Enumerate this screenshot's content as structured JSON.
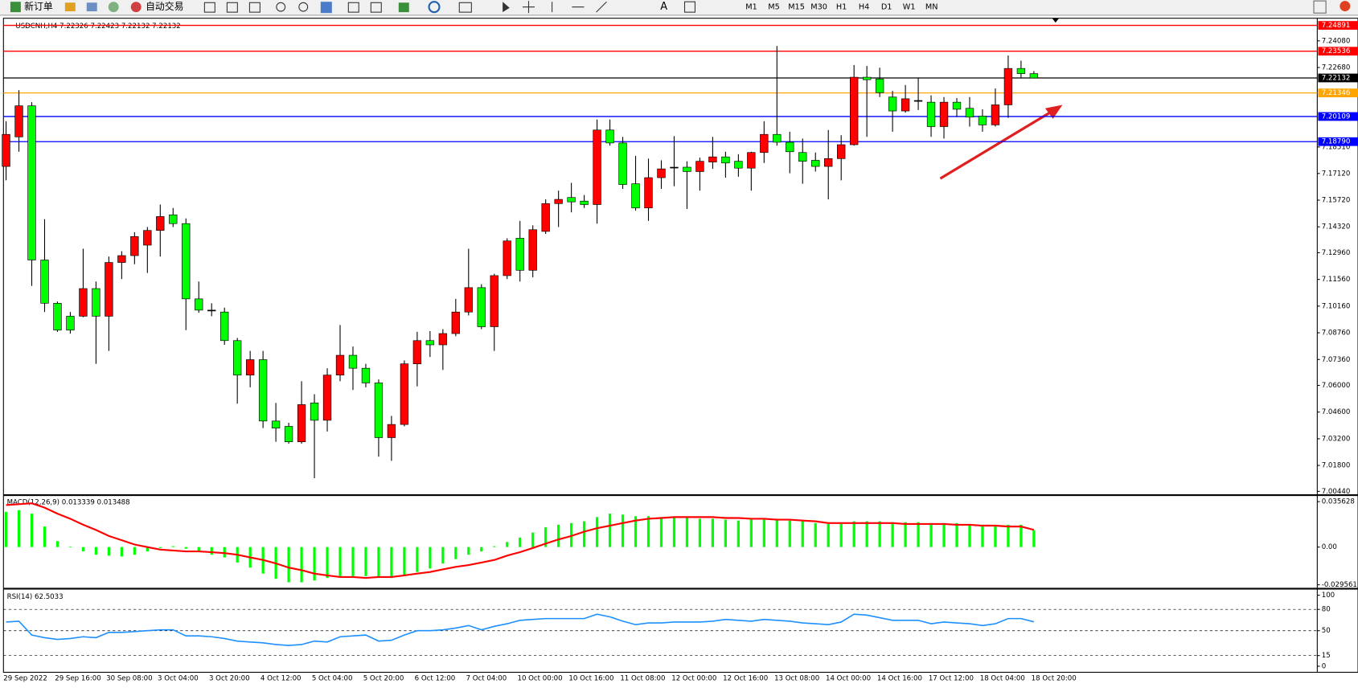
{
  "toolbar": {
    "new_order": "新订单",
    "auto_trading": "自动交易",
    "timeframes": [
      "M1",
      "M5",
      "M15",
      "M30",
      "H1",
      "H4",
      "D1",
      "W1",
      "MN"
    ]
  },
  "chart_data": [
    {
      "type": "candlestick",
      "title": "USDCNH,H4  7.22326 7.22423 7.22132 7.22132",
      "categories": [
        "29 Sep 2022",
        null,
        null,
        null,
        "29 Sep 16:00",
        null,
        null,
        null,
        "30 Sep 08:00",
        null,
        null,
        null,
        "3 Oct 04:00",
        null,
        null,
        null,
        "3 Oct 20:00",
        null,
        null,
        null,
        "4 Oct 12:00",
        null,
        null,
        null,
        "5 Oct 04:00",
        null,
        null,
        null,
        "5 Oct 20:00",
        null,
        null,
        null,
        "6 Oct 12:00",
        null,
        null,
        null,
        "7 Oct 04:00",
        null,
        null,
        null,
        "10 Oct 00:00",
        null,
        null,
        null,
        "10 Oct 16:00",
        null,
        null,
        null,
        "11 Oct 08:00",
        null,
        null,
        null,
        "12 Oct 00:00",
        null,
        null,
        null,
        "12 Oct 16:00",
        null,
        null,
        null,
        "13 Oct 08:00",
        null,
        null,
        null,
        "14 Oct 00:00",
        null,
        null,
        null,
        "14 Oct 16:00",
        null,
        null,
        null,
        "17 Oct 12:00",
        null,
        null,
        null,
        "18 Oct 04:00",
        null,
        null,
        null,
        "18 Oct 20:00"
      ],
      "open": [
        7.1749,
        7.1904,
        7.2067,
        7.1258,
        7.1031,
        7.0963,
        7.0963,
        7.1108,
        7.0963,
        7.1245,
        7.1281,
        7.1336,
        7.1413,
        7.1495,
        7.1449,
        7.1054,
        7.0995,
        7.0985,
        7.0835,
        7.0654,
        7.0735,
        7.0413,
        7.0385,
        7.0304,
        7.0508,
        7.0417,
        7.0654,
        7.0758,
        7.069,
        7.0613,
        7.0326,
        7.0395,
        7.0713,
        7.0835,
        7.0813,
        7.0872,
        7.0985,
        7.1113,
        7.0908,
        7.1176,
        7.1372,
        7.1204,
        7.1408,
        7.1554,
        7.1586,
        7.1567,
        7.1549,
        7.194,
        7.1872,
        7.1658,
        7.1531,
        7.169,
        7.1745,
        7.1745,
        7.1722,
        7.1772,
        7.1799,
        7.1776,
        7.174,
        7.1822,
        7.1917,
        7.1876,
        7.1822,
        7.1781,
        7.1749,
        7.179,
        7.1863,
        7.2217,
        7.2208,
        7.2113,
        7.204,
        7.2095,
        7.2086,
        7.1958,
        7.2086,
        7.2054,
        7.2013,
        7.1967,
        7.2072,
        7.2263,
        7.2236
      ],
      "high": [
        7.1986,
        7.2149,
        7.2086,
        7.1472,
        7.104,
        7.0985,
        7.1317,
        7.1145,
        7.1276,
        7.1304,
        7.1404,
        7.1431,
        7.1549,
        7.1531,
        7.1476,
        7.1145,
        7.1031,
        7.1008,
        7.0849,
        7.0781,
        7.0781,
        7.0508,
        7.0404,
        7.0622,
        7.0554,
        7.069,
        7.0917,
        7.0804,
        7.0713,
        7.0631,
        7.044,
        7.0731,
        7.0881,
        7.0885,
        7.0895,
        7.1054,
        7.1317,
        7.1131,
        7.1186,
        7.1372,
        7.1463,
        7.144,
        7.1576,
        7.1622,
        7.1663,
        7.1599,
        7.1995,
        7.1995,
        7.1904,
        7.1804,
        7.179,
        7.1781,
        7.1908,
        7.1776,
        7.1795,
        7.1904,
        7.1826,
        7.1813,
        7.1826,
        7.1986,
        7.2381,
        7.1931,
        7.1895,
        7.1822,
        7.194,
        7.1913,
        7.2281,
        7.2276,
        7.2267,
        7.2145,
        7.2176,
        7.2213,
        7.2122,
        7.2113,
        7.2108,
        7.2113,
        7.2049,
        7.2158,
        7.2331,
        7.2304,
        7.2249
      ],
      "low": [
        7.1676,
        7.1826,
        7.1122,
        7.0985,
        7.0881,
        7.0872,
        7.0958,
        7.0713,
        7.0781,
        7.1158,
        7.1236,
        7.119,
        7.1276,
        7.1431,
        7.089,
        7.0981,
        7.0963,
        7.0813,
        7.0504,
        7.059,
        7.0376,
        7.0304,
        7.0294,
        7.0294,
        7.0113,
        7.0358,
        7.0622,
        7.0576,
        7.059,
        7.0226,
        7.0204,
        7.0385,
        7.0595,
        7.0749,
        7.0681,
        7.0858,
        7.0967,
        7.0895,
        7.0781,
        7.1158,
        7.1145,
        7.1167,
        7.1395,
        7.1431,
        7.1508,
        7.1531,
        7.1449,
        7.1858,
        7.1631,
        7.1517,
        7.1463,
        7.1631,
        7.1645,
        7.1526,
        7.1622,
        7.1736,
        7.169,
        7.1695,
        7.1622,
        7.1767,
        7.1858,
        7.1713,
        7.1658,
        7.1722,
        7.1576,
        7.1676,
        7.1858,
        7.1904,
        7.2113,
        7.1931,
        7.2031,
        7.2045,
        7.1904,
        7.1895,
        7.2008,
        7.1958,
        7.1931,
        7.1958,
        7.2004,
        7.2213,
        7.2213
      ],
      "close": [
        7.1917,
        7.2067,
        7.1258,
        7.1031,
        7.089,
        7.089,
        7.1108,
        7.0963,
        7.1245,
        7.1281,
        7.1381,
        7.1413,
        7.1486,
        7.1449,
        7.1054,
        7.0995,
        7.0995,
        7.0835,
        7.0654,
        7.0735,
        7.0413,
        7.0376,
        7.0304,
        7.0499,
        7.0417,
        7.0654,
        7.0758,
        7.069,
        7.0613,
        7.0326,
        7.0395,
        7.0713,
        7.0835,
        7.0813,
        7.0872,
        7.0985,
        7.1113,
        7.0908,
        7.1176,
        7.1358,
        7.1204,
        7.1417,
        7.1554,
        7.1576,
        7.1563,
        7.1549,
        7.194,
        7.1872,
        7.1654,
        7.1531,
        7.169,
        7.1736,
        7.1745,
        7.1722,
        7.1776,
        7.1799,
        7.1767,
        7.174,
        7.1822,
        7.1917,
        7.1876,
        7.1826,
        7.1776,
        7.1749,
        7.179,
        7.1863,
        7.2217,
        7.2204,
        7.2136,
        7.204,
        7.2104,
        7.2095,
        7.1958,
        7.2086,
        7.2049,
        7.2008,
        7.1967,
        7.2072,
        7.2263,
        7.2236,
        7.2213
      ],
      "up_color": "#ff0000",
      "down_color": "#00ff00",
      "ylim": [
        7.0031,
        7.2522
      ],
      "yticks": [
        {
          "value": 7.2408,
          "label": "7.24080"
        },
        {
          "value": 7.2268,
          "label": "7.22680"
        },
        {
          "value": 7.1851,
          "label": "7.18510"
        },
        {
          "value": 7.1712,
          "label": "7.17120"
        },
        {
          "value": 7.1572,
          "label": "7.15720"
        },
        {
          "value": 7.1432,
          "label": "7.14320"
        },
        {
          "value": 7.1296,
          "label": "7.12960"
        },
        {
          "value": 7.1156,
          "label": "7.11560"
        },
        {
          "value": 7.1016,
          "label": "7.10160"
        },
        {
          "value": 7.0876,
          "label": "7.08760"
        },
        {
          "value": 7.0736,
          "label": "7.07360"
        },
        {
          "value": 7.06,
          "label": "7.06000"
        },
        {
          "value": 7.046,
          "label": "7.04600"
        },
        {
          "value": 7.032,
          "label": "7.03200"
        },
        {
          "value": 7.018,
          "label": "7.01800"
        },
        {
          "value": 7.0044,
          "label": "7.00440"
        }
      ],
      "levels": [
        {
          "value": 7.24891,
          "label": "7.24891",
          "color": "#ff0000"
        },
        {
          "value": 7.23536,
          "label": "7.23536",
          "color": "#ff0000"
        },
        {
          "value": 7.22132,
          "label": "7.22132",
          "color": "#000000"
        },
        {
          "value": 7.21346,
          "label": "7.21346",
          "color": "#ffa500"
        },
        {
          "value": 7.20109,
          "label": "7.20109",
          "color": "#0000ff"
        },
        {
          "value": 7.1879,
          "label": "7.18790",
          "color": "#0000ff"
        }
      ]
    },
    {
      "type": "macd",
      "title": "MACD(12,26,9) 0.013339 0.013488",
      "values": [
        0.0276,
        0.0289,
        0.0262,
        0.0161,
        0.0047,
        0.0005,
        -0.0034,
        -0.006,
        -0.0067,
        -0.0074,
        -0.006,
        -0.0034,
        -0.0007,
        0.0007,
        -0.0013,
        -0.004,
        -0.006,
        -0.0081,
        -0.0121,
        -0.0161,
        -0.0208,
        -0.0249,
        -0.0276,
        -0.0276,
        -0.0262,
        -0.0242,
        -0.0228,
        -0.0228,
        -0.0228,
        -0.0242,
        -0.0242,
        -0.0228,
        -0.0195,
        -0.0168,
        -0.0128,
        -0.0094,
        -0.006,
        -0.0034,
        0.0007,
        0.004,
        0.0074,
        0.0114,
        0.0155,
        0.0175,
        0.0188,
        0.0202,
        0.0235,
        0.0262,
        0.0255,
        0.0242,
        0.0242,
        0.0235,
        0.0228,
        0.0228,
        0.0222,
        0.0222,
        0.0215,
        0.0208,
        0.0215,
        0.0215,
        0.0222,
        0.0208,
        0.0202,
        0.0188,
        0.0181,
        0.0181,
        0.0202,
        0.0202,
        0.0202,
        0.0195,
        0.0195,
        0.0195,
        0.0188,
        0.0188,
        0.0188,
        0.0181,
        0.0175,
        0.0168,
        0.0175,
        0.0175,
        0.0133
      ],
      "signal": [
        0.0329,
        0.0336,
        0.0343,
        0.0309,
        0.0262,
        0.0222,
        0.0175,
        0.0134,
        0.0087,
        0.0054,
        0.002,
        0,
        -0.002,
        -0.0027,
        -0.0034,
        -0.0034,
        -0.004,
        -0.0047,
        -0.006,
        -0.0081,
        -0.0101,
        -0.0128,
        -0.0161,
        -0.0181,
        -0.0208,
        -0.0222,
        -0.0235,
        -0.0235,
        -0.0242,
        -0.0235,
        -0.0235,
        -0.0222,
        -0.0208,
        -0.0195,
        -0.0175,
        -0.0155,
        -0.0141,
        -0.0121,
        -0.0101,
        -0.0067,
        -0.004,
        -0.0007,
        0.0027,
        0.006,
        0.0087,
        0.0121,
        0.0148,
        0.0168,
        0.0188,
        0.0208,
        0.0222,
        0.0228,
        0.0235,
        0.0235,
        0.0235,
        0.0235,
        0.0228,
        0.0228,
        0.0222,
        0.0222,
        0.0215,
        0.0215,
        0.0208,
        0.0202,
        0.0188,
        0.0188,
        0.0188,
        0.0188,
        0.0188,
        0.0188,
        0.0181,
        0.0181,
        0.0181,
        0.0181,
        0.0175,
        0.0175,
        0.0168,
        0.0168,
        0.0161,
        0.0161,
        0.0135
      ],
      "color": "#00ff00",
      "signal_color": "#ff0000",
      "ylim": [
        -0.0316,
        0.0397
      ],
      "yticks": [
        0.035628,
        {
          "value": 0,
          "label": "0.00"
        },
        -0.029561
      ]
    },
    {
      "type": "line",
      "title": "RSI(14) 62.5033",
      "values": [
        62.2,
        63.4,
        43.9,
        40.2,
        37.8,
        39,
        41.5,
        40.2,
        47.6,
        47.6,
        48.8,
        50,
        51.2,
        51.2,
        42.7,
        42.7,
        41.5,
        39,
        35.4,
        34.1,
        32.9,
        30.5,
        29.3,
        30.5,
        35.4,
        34.1,
        41.5,
        42.7,
        43.9,
        35.4,
        36.6,
        43.9,
        50,
        50,
        51.2,
        53.7,
        57.3,
        51.2,
        56.1,
        59.8,
        64.6,
        65.9,
        67.1,
        67.1,
        67.1,
        67.1,
        73.2,
        69.5,
        63.4,
        58.5,
        61,
        61,
        62.2,
        62.2,
        62.2,
        63.4,
        65.9,
        64.6,
        63.4,
        65.9,
        64.6,
        63.4,
        61,
        59.8,
        58.5,
        62.2,
        73.2,
        72,
        68.3,
        64.6,
        64.6,
        64.6,
        59.8,
        62.2,
        61,
        59.8,
        57.3,
        59.8,
        67.1,
        67.1,
        62.5
      ],
      "color": "#1e90ff",
      "ylim": [
        -7.3,
        106.1
      ],
      "yticks": [
        100,
        80,
        50,
        15,
        0
      ],
      "levels": [
        80,
        50,
        15
      ]
    }
  ]
}
